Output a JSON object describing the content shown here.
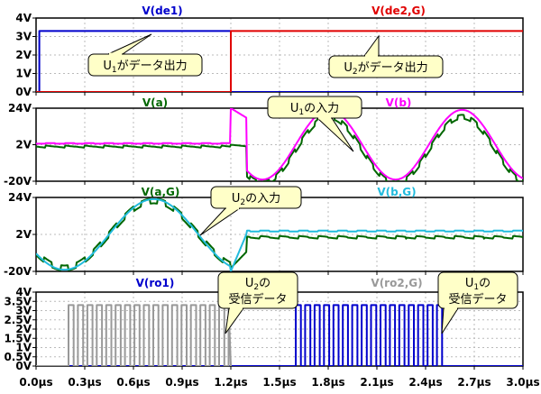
{
  "chart_data": {
    "type": "line",
    "x_axis": {
      "unit": "µs",
      "range": [
        0,
        3.0
      ],
      "tick_labels": [
        "0.0µs",
        "0.3µs",
        "0.6µs",
        "0.9µs",
        "1.2µs",
        "1.5µs",
        "1.8µs",
        "2.1µs",
        "2.4µs",
        "2.7µs",
        "3.0µs"
      ],
      "tick_values": [
        0,
        0.3,
        0.6,
        0.9,
        1.2,
        1.5,
        1.8,
        2.1,
        2.4,
        2.7,
        3.0
      ]
    },
    "panels": [
      {
        "id": "de",
        "ylim": [
          0,
          4
        ],
        "y_tick_labels": [
          "4V",
          "3V",
          "2V",
          "1V",
          "0V"
        ],
        "y_tick_values": [
          4,
          3,
          2,
          1,
          0
        ],
        "series": [
          {
            "name": "V(de1)",
            "color": "#0000cc",
            "x": [
              0,
              0.02,
              0.02,
              1.2,
              1.2,
              3.0
            ],
            "y": [
              0,
              0,
              3.3,
              3.3,
              0,
              0
            ]
          },
          {
            "name": "V(de2,G)",
            "color": "#e00000",
            "x": [
              0,
              1.2,
              1.2,
              3.0
            ],
            "y": [
              0,
              0,
              3.3,
              3.3
            ]
          }
        ],
        "annotations": [
          {
            "text_parts": [
              "U",
              "1",
              "がデータ出力"
            ],
            "x": 0.9,
            "y": 1.0,
            "bbox": [
              0.71,
              2.15,
              3.05
            ]
          },
          {
            "text_parts": [
              "U",
              "2",
              "がデータ出力"
            ],
            "x": 2.85,
            "y": 3.0,
            "bbox": [
              2.0,
              2.45,
              3.15
            ]
          }
        ]
      },
      {
        "id": "ab",
        "ylim": [
          -20,
          24
        ],
        "y_tick_labels": [
          "24V",
          "2V",
          "-20V"
        ],
        "y_tick_values": [
          24,
          2,
          -20
        ],
        "series": [
          {
            "name": "V(a)",
            "color": "#006600",
            "x": [],
            "y": []
          },
          {
            "name": "V(b)",
            "color": "#ff00ff",
            "x": [],
            "y": []
          }
        ],
        "annotations": [
          {
            "text_parts": [
              "U",
              "1",
              "の入力"
            ],
            "x": 2.1,
            "y": 0,
            "bbox": [
              1.75,
              2.45,
              17,
              9
            ]
          }
        ]
      },
      {
        "id": "abG",
        "ylim": [
          -20,
          24
        ],
        "y_tick_labels": [
          "24V",
          "2V",
          "-20V"
        ],
        "y_tick_values": [
          24,
          2,
          -20
        ],
        "series": [
          {
            "name": "V(a,G)",
            "color": "#006600",
            "x": [],
            "y": []
          },
          {
            "name": "V(b,G)",
            "color": "#22bbdd",
            "x": [],
            "y": []
          }
        ],
        "annotations": [
          {
            "text_parts": [
              "U",
              "2",
              "の入力"
            ],
            "x": 1.0,
            "y": 8,
            "bbox": [
              1.1,
              1.55,
              20,
              12
            ]
          }
        ]
      },
      {
        "id": "ro",
        "ylim": [
          0,
          4
        ],
        "y_tick_labels": [
          "4V",
          "3.5V",
          "3V",
          "2.5V",
          "2V",
          "1.5V",
          "1V",
          "0.5V",
          "0V"
        ],
        "y_tick_values": [
          4,
          3.5,
          3,
          2.5,
          2,
          1.5,
          1,
          0.5,
          0
        ],
        "series": [
          {
            "name": "V(ro1)",
            "color": "#0000cc",
            "x": [],
            "y": []
          },
          {
            "name": "V(ro2,G)",
            "color": "#999999",
            "x": [],
            "y": []
          }
        ],
        "annotations": [
          {
            "lines": [
              [
                "U",
                "2",
                "の"
              ],
              [
                "受信データ"
              ]
            ],
            "x": 1.05,
            "y": 2.3,
            "bbox": [
              1.2,
              1.65,
              4.2,
              2.9
            ]
          },
          {
            "lines": [
              [
                "U",
                "1",
                "の"
              ],
              [
                "受信データ"
              ]
            ],
            "x": 2.45,
            "y": 2.3,
            "bbox": [
              2.3,
              2.75,
              4.2,
              2.9
            ]
          }
        ]
      }
    ]
  }
}
